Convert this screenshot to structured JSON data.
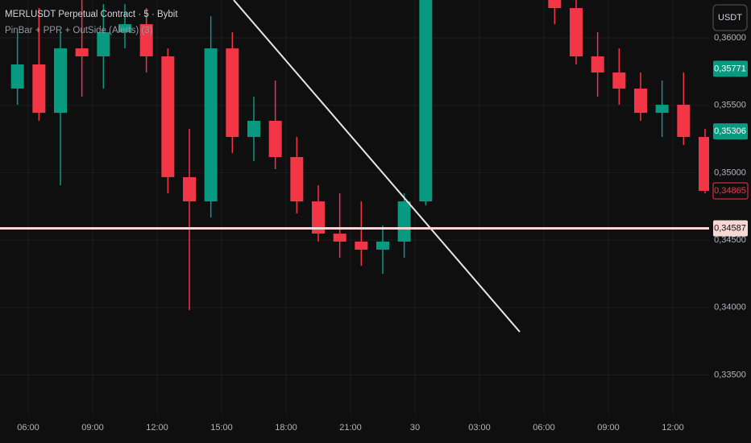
{
  "chart_data": {
    "type": "candlestick",
    "title": "MERLUSDT Perpetual Contract · 5 · Bybit",
    "subtitle": "PinBar + PPR + OutSide (Alerts) (3)",
    "currency": "USDT",
    "x": [
      5.5,
      6.5,
      7.5,
      8.5,
      9.5,
      10.5,
      11.5,
      12.5,
      13.5,
      14.5,
      15.5,
      16.5,
      17.5,
      18.5,
      19.5,
      20.5,
      21.5,
      22.5,
      23.5,
      24.5,
      30.5,
      31.5,
      32.5,
      33.5,
      34.5,
      35.5,
      36.5,
      37.5
    ],
    "open": [
      0.35624,
      0.35803,
      0.35444,
      0.35922,
      0.35863,
      0.36042,
      0.36102,
      0.35863,
      0.34967,
      0.34787,
      0.35922,
      0.35265,
      0.35385,
      0.35116,
      0.34787,
      0.34548,
      0.34489,
      0.34429,
      0.34489,
      0.34787,
      0.36281,
      0.36221,
      0.35863,
      0.35743,
      0.35624,
      0.35444,
      0.35504,
      0.35265
    ],
    "high": [
      0.36042,
      0.36221,
      0.36042,
      0.36281,
      0.36251,
      0.36251,
      0.36221,
      0.35922,
      0.35325,
      0.36161,
      0.36042,
      0.35564,
      0.35683,
      0.35265,
      0.34907,
      0.34847,
      0.34787,
      0.34608,
      0.34847,
      0.3634,
      0.364,
      0.36281,
      0.36042,
      0.35922,
      0.35743,
      0.35683,
      0.35743,
      0.35325
    ],
    "low": [
      0.35504,
      0.35385,
      0.34907,
      0.35564,
      0.35624,
      0.35922,
      0.35743,
      0.34847,
      0.33981,
      0.34668,
      0.35146,
      0.35086,
      0.35026,
      0.34698,
      0.34489,
      0.34369,
      0.34309,
      0.3425,
      0.34369,
      0.34757,
      0.36102,
      0.35803,
      0.35564,
      0.35504,
      0.35385,
      0.35265,
      0.35205,
      0.34847
    ],
    "close": [
      0.35803,
      0.35444,
      0.35922,
      0.35863,
      0.36042,
      0.36102,
      0.35863,
      0.34967,
      0.34787,
      0.35922,
      0.35265,
      0.35385,
      0.35116,
      0.34787,
      0.34548,
      0.34489,
      0.34429,
      0.34489,
      0.34787,
      0.36281,
      0.36221,
      0.35863,
      0.35743,
      0.35624,
      0.35444,
      0.35504,
      0.35265,
      0.34865
    ],
    "up_color": "#089981",
    "down_color": "#f23645",
    "xlim": [
      4.6875,
      37.6875
    ],
    "xticks": [
      {
        "value": 6,
        "label": "06:00"
      },
      {
        "value": 9,
        "label": "09:00"
      },
      {
        "value": 12,
        "label": "12:00"
      },
      {
        "value": 15,
        "label": "15:00"
      },
      {
        "value": 18,
        "label": "18:00"
      },
      {
        "value": 21,
        "label": "21:00"
      },
      {
        "value": 24,
        "label": "30"
      },
      {
        "value": 27,
        "label": "03:00"
      },
      {
        "value": 30,
        "label": "06:00"
      },
      {
        "value": 33,
        "label": "09:00"
      },
      {
        "value": 36,
        "label": "12:00"
      }
    ],
    "ylim": [
      0.33204,
      0.36281
    ],
    "yticks": [
      {
        "value": 0.36,
        "label": "0,36000"
      },
      {
        "value": 0.355,
        "label": "0,35500"
      },
      {
        "value": 0.35,
        "label": "0,35000"
      },
      {
        "value": 0.345,
        "label": "0,34500"
      },
      {
        "value": 0.34,
        "label": "0,34000"
      },
      {
        "value": 0.335,
        "label": "0,33500"
      }
    ],
    "grid": true,
    "price_labels": [
      {
        "value": 0.35771,
        "label": "0,35771",
        "color": "#089981"
      },
      {
        "value": 0.35306,
        "label": "0,35306",
        "color": "#089981"
      },
      {
        "value": 0.34865,
        "label": "0,34865",
        "color": "#f23645"
      },
      {
        "value": 0.34587,
        "label": "0,34587",
        "color": "#f8d7d7"
      }
    ]
  }
}
